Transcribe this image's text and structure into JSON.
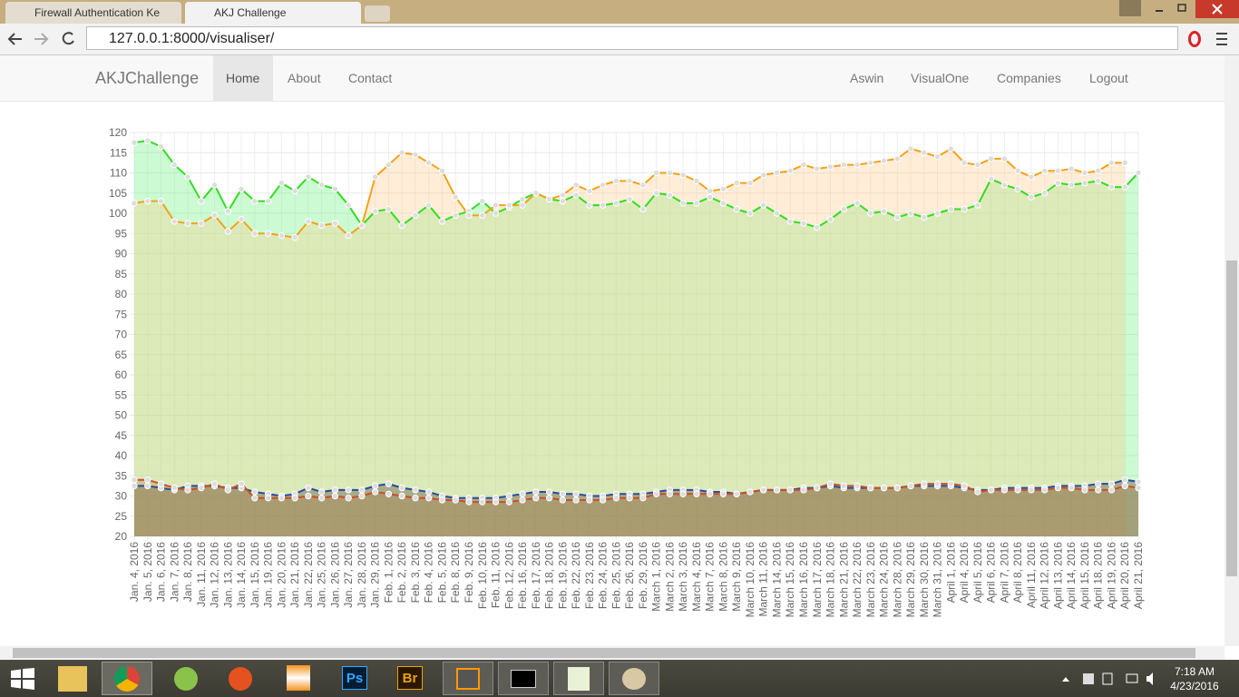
{
  "browser": {
    "tabs": [
      "Firewall Authentication Ke",
      "AKJ Challenge"
    ],
    "url": "127.0.0.1:8000/visualiser/"
  },
  "navbar": {
    "brand": "AKJChallenge",
    "left": [
      "Home",
      "About",
      "Contact"
    ],
    "right": [
      "Aswin",
      "VisualOne",
      "Companies",
      "Logout"
    ]
  },
  "taskbar": {
    "app_labels": [
      "Ps",
      "Br"
    ],
    "time": "7:18 AM",
    "date": "4/23/2016"
  },
  "chart_data": {
    "type": "line",
    "categories": [
      "Jan. 4, 2016",
      "Jan. 5, 2016",
      "Jan. 6, 2016",
      "Jan. 7, 2016",
      "Jan. 8, 2016",
      "Jan. 11, 2016",
      "Jan. 12, 2016",
      "Jan. 13, 2016",
      "Jan. 14, 2016",
      "Jan. 15, 2016",
      "Jan. 19, 2016",
      "Jan. 20, 2016",
      "Jan. 21, 2016",
      "Jan. 22, 2016",
      "Jan. 25, 2016",
      "Jan. 26, 2016",
      "Jan. 27, 2016",
      "Jan. 28, 2016",
      "Jan. 29, 2016",
      "Feb. 1, 2016",
      "Feb. 2, 2016",
      "Feb. 3, 2016",
      "Feb. 4, 2016",
      "Feb. 5, 2016",
      "Feb. 8, 2016",
      "Feb. 9, 2016",
      "Feb. 10, 2016",
      "Feb. 11, 2016",
      "Feb. 12, 2016",
      "Feb. 16, 2016",
      "Feb. 17, 2016",
      "Feb. 18, 2016",
      "Feb. 19, 2016",
      "Feb. 22, 2016",
      "Feb. 23, 2016",
      "Feb. 24, 2016",
      "Feb. 25, 2016",
      "Feb. 26, 2016",
      "Feb. 29, 2016",
      "March 1, 2016",
      "March 2, 2016",
      "March 3, 2016",
      "March 4, 2016",
      "March 7, 2016",
      "March 8, 2016",
      "March 9, 2016",
      "March 10, 2016",
      "March 11, 2016",
      "March 14, 2016",
      "March 15, 2016",
      "March 16, 2016",
      "March 17, 2016",
      "March 18, 2016",
      "March 21, 2016",
      "March 22, 2016",
      "March 23, 2016",
      "March 24, 2016",
      "March 28, 2016",
      "March 29, 2016",
      "March 30, 2016",
      "March 31, 2016",
      "April 1, 2016",
      "April 4, 2016",
      "April 5, 2016",
      "April 6, 2016",
      "April 7, 2016",
      "April 8, 2016",
      "April 11, 2016",
      "April 12, 2016",
      "April 13, 2016",
      "April 14, 2016",
      "April 15, 2016",
      "April 18, 2016",
      "April 19, 2016",
      "April 20, 2016",
      "April 21, 2016"
    ],
    "series": [
      {
        "color": "#33dd22",
        "fill": "rgba(120,245,140,0.38)",
        "values": [
          117.5,
          118,
          116.5,
          112,
          109,
          103,
          107,
          100.5,
          106,
          103,
          103,
          107.5,
          105.5,
          109,
          107,
          106,
          102,
          97,
          100.5,
          101,
          97,
          99.5,
          102,
          98,
          99.5,
          100.5,
          103,
          100,
          101.5,
          103.5,
          105,
          103.5,
          103,
          104.5,
          102,
          102,
          102.5,
          103.5,
          101,
          105,
          104.5,
          102.5,
          102.5,
          104,
          102.5,
          101,
          100,
          102,
          100,
          98,
          97.5,
          96.5,
          98.5,
          101,
          102.5,
          100,
          100.5,
          99,
          100,
          99,
          100,
          101,
          101,
          102,
          108.5,
          107,
          106,
          104,
          105,
          107.5,
          107,
          107.5,
          108,
          106.5,
          106.5,
          110
        ]
      },
      {
        "color": "#f2a31c",
        "fill": "rgba(255,200,130,0.32)",
        "values": [
          102.5,
          103,
          103,
          98,
          97.5,
          97.5,
          99.5,
          95.5,
          98.5,
          95,
          95,
          94.5,
          94,
          98,
          97,
          97.5,
          94.5,
          97,
          109,
          112,
          115,
          114.5,
          112.5,
          110.5,
          104,
          99.5,
          99.5,
          102,
          102,
          102,
          105,
          103.5,
          104.5,
          107,
          105.5,
          107,
          108,
          108,
          107,
          110,
          110,
          109.5,
          108,
          105.5,
          106,
          107.5,
          107.5,
          109.5,
          110,
          110.5,
          112,
          111,
          111.5,
          112,
          112,
          112.5,
          113,
          113.5,
          116,
          115,
          114,
          116,
          112.5,
          112,
          113.5,
          113.5,
          110.5,
          109,
          110.5,
          110.5,
          111,
          110,
          110.5,
          112.5,
          112.5,
          null
        ]
      },
      {
        "color": "#2a4d9c",
        "fill": "rgba(120,110,90,0.5)",
        "values": [
          32.5,
          32.5,
          32,
          31.5,
          32.5,
          32.5,
          32.5,
          32,
          32,
          31,
          30.5,
          30,
          30.5,
          32,
          31,
          31.5,
          31.5,
          31.5,
          32.5,
          33,
          32,
          31.5,
          31,
          30,
          29.5,
          29.5,
          29.5,
          29.5,
          30,
          30.5,
          31,
          31,
          30.5,
          30.5,
          30,
          30,
          30.5,
          30.5,
          30.5,
          31,
          31.5,
          31.5,
          31.5,
          31,
          31,
          30.5,
          31,
          31.5,
          31.5,
          31.5,
          32,
          32,
          32.5,
          32,
          32,
          32,
          32,
          32,
          32.5,
          32.5,
          32.5,
          32.5,
          32,
          31.5,
          31.5,
          32,
          32,
          32,
          32,
          32.5,
          32.5,
          32.5,
          33,
          33,
          34,
          33.5
        ]
      },
      {
        "color": "#c8502a",
        "fill": "rgba(170,120,60,0.3)",
        "values": [
          34,
          34,
          33,
          32,
          31.5,
          32,
          33,
          31.5,
          33,
          29.5,
          29.5,
          29.5,
          29.5,
          30,
          29.5,
          30,
          29.5,
          30,
          31,
          30.5,
          30,
          29.5,
          29.5,
          29,
          29,
          28.5,
          28.5,
          28.5,
          28.5,
          29,
          29.5,
          29.5,
          29,
          29,
          29,
          29,
          29.5,
          29.5,
          29.5,
          30.5,
          30.5,
          30.5,
          30.5,
          30.5,
          30.5,
          30.5,
          31,
          31.5,
          31.5,
          31.5,
          31.5,
          32,
          33,
          32.5,
          32.5,
          32,
          32,
          32,
          32.5,
          33,
          33,
          33,
          32.5,
          31,
          31.5,
          31.5,
          31.5,
          31.5,
          31.5,
          32,
          32,
          31.5,
          31.5,
          31.5,
          32.5,
          32
        ]
      }
    ],
    "ylim": [
      20,
      120
    ],
    "yticks": [
      20,
      25,
      30,
      35,
      40,
      45,
      50,
      55,
      60,
      65,
      70,
      75,
      80,
      85,
      90,
      95,
      100,
      105,
      110,
      115,
      120
    ],
    "grid": true
  }
}
